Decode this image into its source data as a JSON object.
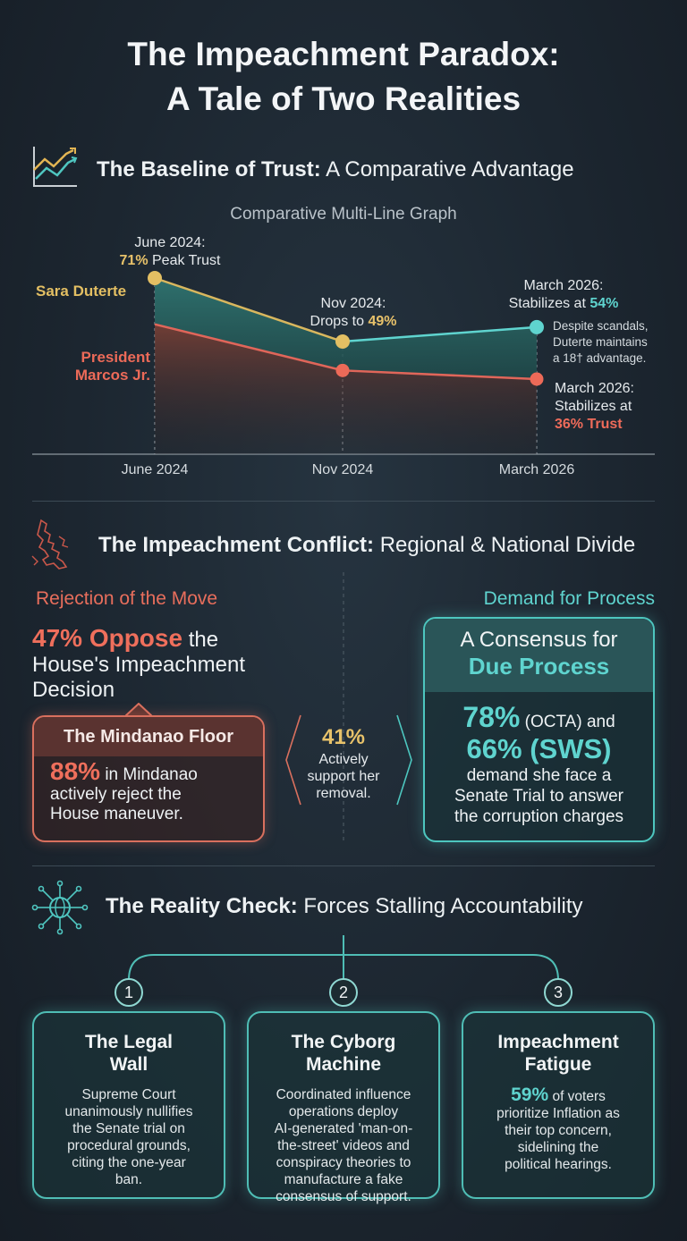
{
  "title_line1": "The Impeachment Paradox:",
  "title_line2": "A Tale of Two Realities",
  "section1": {
    "title_bold": "The Baseline of Trust:",
    "title_rest": " A Comparative Advantage",
    "chart_subtitle": "Comparative Multi-Line Graph",
    "series_label_duterte": "Sara Duterte",
    "series_label_marcos_1": "President",
    "series_label_marcos_2": "Marcos Jr.",
    "ann_june_1": "June 2024:",
    "ann_june_val": "71%",
    "ann_june_rest": " Peak Trust",
    "ann_nov_1": "Nov 2024:",
    "ann_nov_pre": "Drops to ",
    "ann_nov_val": "49%",
    "ann_mar_1": "March 2026:",
    "ann_mar_pre": "Stabilizes at ",
    "ann_mar_val": "54%",
    "ann_adv_1": "Despite scandals,",
    "ann_adv_2": "Duterte maintains",
    "ann_adv_3": "a 18† advantage.",
    "ann_marcos_1": "March 2026:",
    "ann_marcos_2": "Stabilizes at",
    "ann_marcos_val": "36% Trust"
  },
  "chart_data": {
    "type": "line",
    "title": "Comparative Multi-Line Graph",
    "categories": [
      "June 2024",
      "Nov 2024",
      "March 2026"
    ],
    "series": [
      {
        "name": "Sara Duterte",
        "values": [
          71,
          49,
          54
        ],
        "color": "#e3bf63"
      },
      {
        "name": "President Marcos Jr.",
        "values": [
          55,
          39,
          36
        ],
        "color": "#ec6a58"
      }
    ],
    "area_color": "#2a6663",
    "area_color_lower": "#6a3a33",
    "ylim": [
      0,
      80
    ],
    "grid": false
  },
  "section2": {
    "title_bold": "The Impeachment Conflict:",
    "title_rest": " Regional & National Divide",
    "left_head": "Rejection of the Move",
    "oppose_val": "47% Oppose",
    "oppose_rest": " the",
    "oppose_line2": "House's Impeachment",
    "oppose_line3": "Decision",
    "mindanao_title": "The Mindanao Floor",
    "mindanao_val": "88%",
    "mindanao_rest": " in Mindanao",
    "mindanao_line2": "actively reject the",
    "mindanao_line3": "House maneuver.",
    "mid_val": "41%",
    "mid_line1": "Actively",
    "mid_line2": "support her",
    "mid_line3": "removal.",
    "right_head": "Demand for Process",
    "consensus_line1": "A Consensus for",
    "consensus_line2": "Due Process",
    "octa_val": "78%",
    "octa_rest": " (OCTA) and",
    "sws_val": "66% (SWS)",
    "demand_1": "demand she face a",
    "demand_2": "Senate Trial to answer",
    "demand_3": "the corruption charges"
  },
  "section3": {
    "title_bold": "The Reality Check:",
    "title_rest": " Forces Stalling Accountability",
    "cards": [
      {
        "num": "1",
        "title1": "The Legal",
        "title2": "Wall",
        "lines": [
          "Supreme Court",
          "unanimously nullifies",
          "the Senate trial on",
          "procedural grounds,",
          "citing the one-year",
          "ban."
        ]
      },
      {
        "num": "2",
        "title1": "The Cyborg",
        "title2": "Machine",
        "lines": [
          "Coordinated influence",
          "operations deploy",
          "AI-generated 'man-on-",
          "the-street' videos and",
          "conspiracy theories to",
          "manufacture a fake",
          "consensus of support."
        ]
      },
      {
        "num": "3",
        "title1": "Impeachment",
        "title2": "Fatigue",
        "val": "59%",
        "first_rest": " of voters",
        "lines": [
          "prioritize Inflation as",
          "their top concern,",
          "sidelining the",
          "political hearings."
        ]
      }
    ]
  },
  "colors": {
    "gold": "#e8c26a",
    "teal": "#5fd4cf",
    "red": "#ee6b5a",
    "bg": "#1c2630"
  }
}
